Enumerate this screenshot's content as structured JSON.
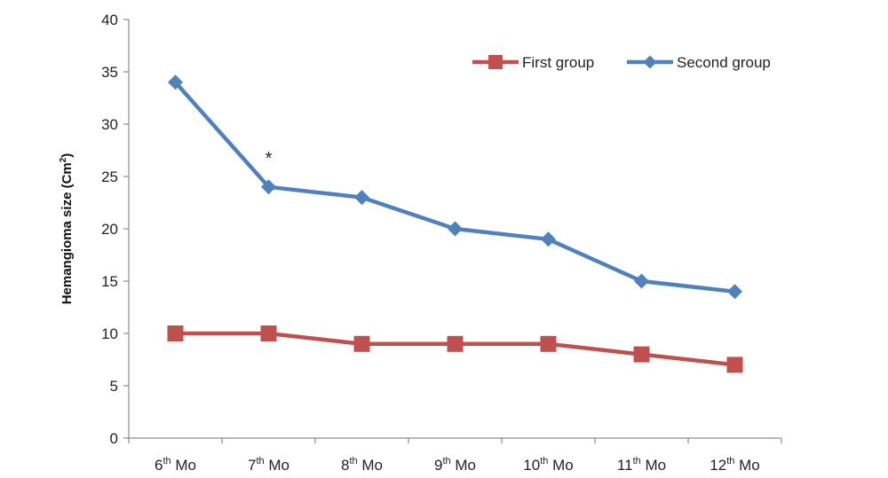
{
  "chart_data": {
    "type": "line",
    "ylabel": "Hemangioma size (Cm",
    "ylabel_sup": "2",
    "ylabel_close": ")",
    "ylim": [
      0,
      40
    ],
    "yticks": [
      0,
      5,
      10,
      15,
      20,
      25,
      30,
      35,
      40
    ],
    "categories": [
      {
        "num": "6",
        "sup": "th",
        "unit": " Mo"
      },
      {
        "num": "7",
        "sup": "th",
        "unit": " Mo"
      },
      {
        "num": "8",
        "sup": "th",
        "unit": " Mo"
      },
      {
        "num": "9",
        "sup": "th",
        "unit": " Mo"
      },
      {
        "num": "10",
        "sup": "th",
        "unit": " Mo"
      },
      {
        "num": "11",
        "sup": "th",
        "unit": " Mo"
      },
      {
        "num": "12",
        "sup": "th",
        "unit": " Mo"
      }
    ],
    "series": [
      {
        "name": "First group",
        "color": "#c0504d",
        "marker": "square",
        "values": [
          10,
          10,
          9,
          9,
          9,
          8,
          7
        ]
      },
      {
        "name": "Second group",
        "color": "#4f81bd",
        "marker": "diamond",
        "values": [
          34,
          24,
          23,
          20,
          19,
          15,
          14
        ]
      }
    ],
    "annotations": [
      {
        "text": "*",
        "category_index": 1,
        "series": "Second group"
      }
    ],
    "grid": false,
    "legend_position": "top-right"
  }
}
